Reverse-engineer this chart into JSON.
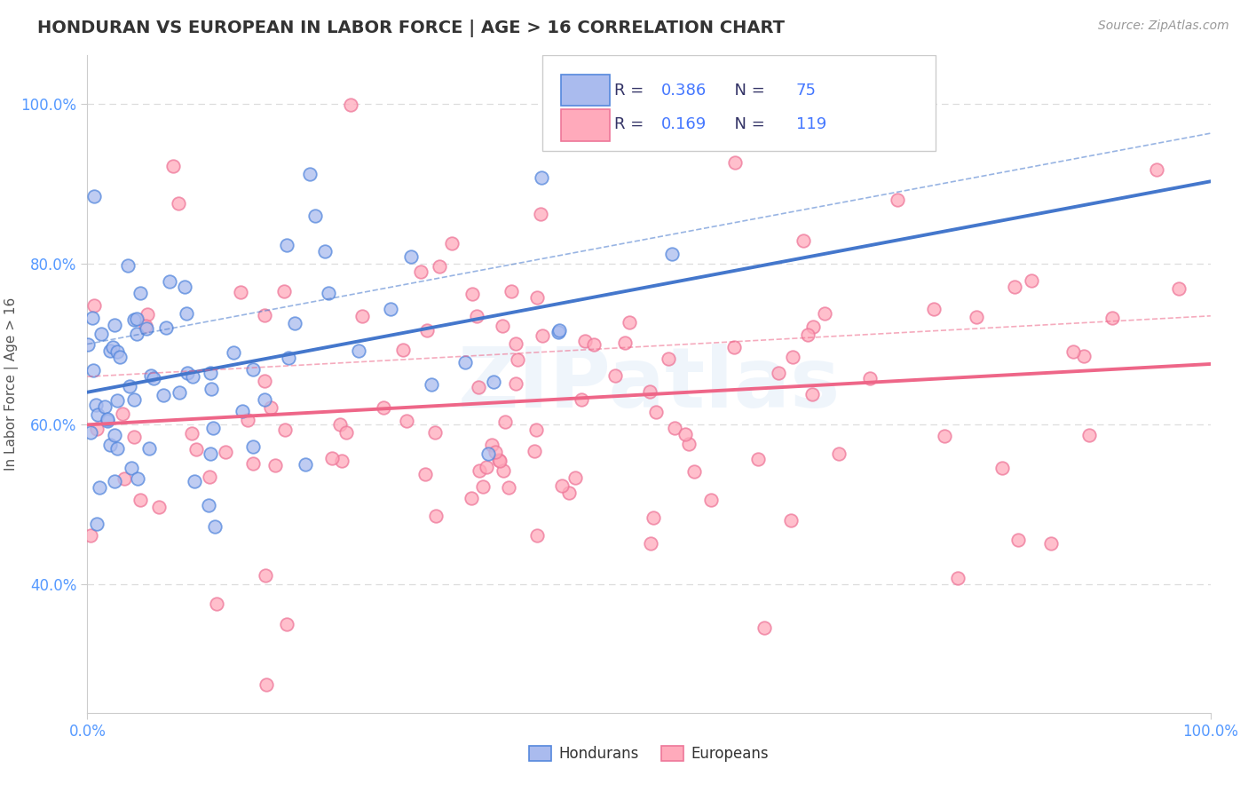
{
  "title": "HONDURAN VS EUROPEAN IN LABOR FORCE | AGE > 16 CORRELATION CHART",
  "source_text": "Source: ZipAtlas.com",
  "ylabel": "In Labor Force | Age > 16",
  "xlim": [
    0.0,
    1.0
  ],
  "ylim": [
    0.24,
    1.06
  ],
  "ytick_positions": [
    0.4,
    0.6,
    0.8,
    1.0
  ],
  "grid_color": "#dddddd",
  "background_color": "#ffffff",
  "blue_R": 0.386,
  "blue_N": 75,
  "pink_R": 0.169,
  "pink_N": 119,
  "blue_line_color": "#4477cc",
  "pink_line_color": "#ee6688",
  "blue_face_color": "#aabbee",
  "pink_face_color": "#ffaabb",
  "blue_edge_color": "#5588dd",
  "pink_edge_color": "#ee7799",
  "tick_color": "#5599ff",
  "text_color": "#333333",
  "legend_text_color": "#333366",
  "legend_number_color": "#4477ff",
  "watermark_color": "#aaccee",
  "watermark_alpha": 0.18,
  "title_color": "#333333",
  "source_color": "#999999"
}
